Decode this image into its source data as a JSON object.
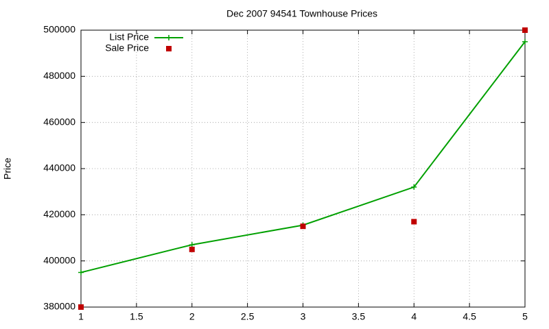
{
  "chart_data": {
    "type": "line",
    "title": "Dec 2007 94541 Townhouse Prices",
    "y_label": "Price",
    "x": [
      1,
      2,
      3,
      4,
      5
    ],
    "series": [
      {
        "name": "List Price",
        "color": "#00a000",
        "mode": "linespoints",
        "values": [
          395000,
          407000,
          415500,
          432000,
          495000
        ]
      },
      {
        "name": "Sale Price",
        "color": "#c00000",
        "mode": "points",
        "values": [
          380000,
          405000,
          415000,
          417000,
          500000
        ]
      }
    ],
    "xlim": [
      1,
      5
    ],
    "xticks": [
      1,
      1.5,
      2,
      2.5,
      3,
      3.5,
      4,
      4.5,
      5
    ],
    "ylim": [
      380000,
      500000
    ],
    "yticks": [
      380000,
      400000,
      420000,
      440000,
      460000,
      480000,
      500000
    ],
    "grid": true,
    "legend": "top-left"
  }
}
